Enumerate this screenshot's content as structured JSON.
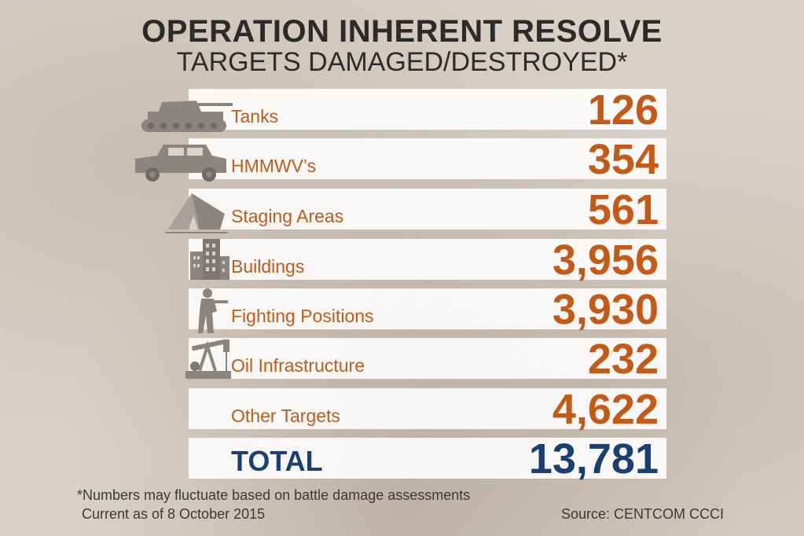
{
  "chart_data": {
    "type": "table",
    "title": "OPERATION INHERENT RESOLVE",
    "subtitle": "TARGETS DAMAGED/DESTROYED*",
    "categories": [
      "Tanks",
      "HMMWV’s",
      "Staging Areas",
      "Buildings",
      "Fighting Positions",
      "Oil Infrastructure",
      "Other Targets"
    ],
    "values": [
      126,
      354,
      561,
      3956,
      3930,
      232,
      4622
    ],
    "value_labels": [
      "126",
      "354",
      "561",
      "3,956",
      "3,930",
      "232",
      "4,622"
    ],
    "total_label": "TOTAL",
    "total_value": 13781,
    "total_value_label": "13,781",
    "icons": [
      "tank-icon",
      "humvee-icon",
      "tent-icon",
      "buildings-icon",
      "soldier-icon",
      "oil-pump-icon",
      ""
    ],
    "colors": {
      "accent": "#c45a16",
      "total": "#1a3f73",
      "text": "#2b2b2b"
    }
  },
  "footnote": "*Numbers may fluctuate based on battle damage assessments",
  "current_as_of": "Current as of 8 October 2015",
  "source": "Source: CENTCOM CCCI"
}
